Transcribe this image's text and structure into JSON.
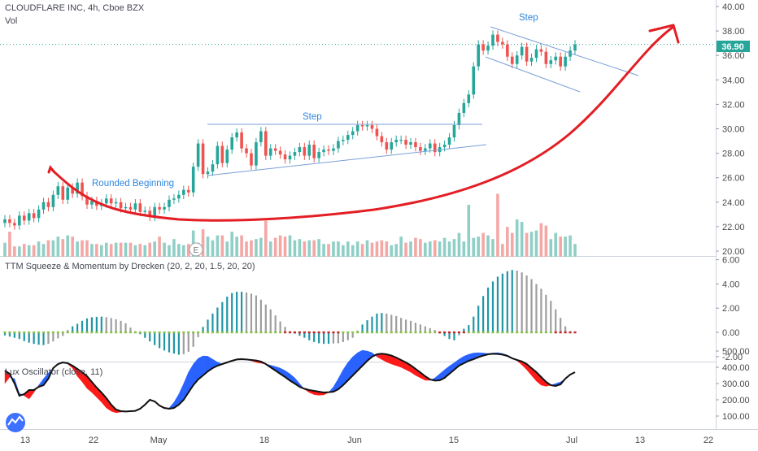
{
  "header": {
    "symbol": "CLOUDFLARE INC, 4h, Cboe BZX",
    "vol_label": "Vol",
    "last_price": "36.90"
  },
  "panes": {
    "squeeze_title": "TTM Squeeze & Momentum by Drecken (20, 2, 20, 1.5, 20, 20)",
    "lux_title": "Lux Oscillator (close, 11)"
  },
  "annotations": {
    "rounded": "Rounded Beginning",
    "step1": "Step",
    "step2": "Step",
    "earnings_marker": "E"
  },
  "colors": {
    "up": "#26a69a",
    "down": "#ef5350",
    "vol_up": "#8fcfc6",
    "vol_down": "#f4a7a5",
    "curve": "#e31e24",
    "trend": "#7b9fd6",
    "mom_up": "#2196a6",
    "mom_fade": "#9e9e9e",
    "sq_on": "#8bc34a",
    "sq_off": "#c62828",
    "lux_bull": "#2962ff",
    "lux_bear": "#ff1a1a",
    "price_label": "#26a69a"
  },
  "chart_data": [
    {
      "type": "candlestick",
      "title": "CLOUDFLARE INC, 4h, Cboe BZX",
      "x_ticks": [
        "13",
        "22",
        "May",
        "18",
        "Jun",
        "15",
        "Jul",
        "13",
        "22"
      ],
      "price_axis": {
        "ylim": [
          19.5,
          40.5
        ],
        "ticks": [
          "20.00",
          "22.00",
          "24.00",
          "26.00",
          "28.00",
          "30.00",
          "32.00",
          "34.00",
          "36.00",
          "38.00",
          "40.00"
        ],
        "last": 36.9
      },
      "closes": [
        22.6,
        22.3,
        22.1,
        22.9,
        22.5,
        23.1,
        22.7,
        23.4,
        24.0,
        23.6,
        24.6,
        25.3,
        24.2,
        25.2,
        24.7,
        25.6,
        24.5,
        23.8,
        24.1,
        23.7,
        23.9,
        24.3,
        23.9,
        24.0,
        23.5,
        23.6,
        23.4,
        23.9,
        23.2,
        23.3,
        22.8,
        23.6,
        23.4,
        23.6,
        24.2,
        24.3,
        24.6,
        25.0,
        24.8,
        26.9,
        28.8,
        26.3,
        26.5,
        27.1,
        28.6,
        27.2,
        28.3,
        29.3,
        29.7,
        28.4,
        28.0,
        27.0,
        28.9,
        29.8,
        27.8,
        28.4,
        28.2,
        27.9,
        27.5,
        27.8,
        28.1,
        28.5,
        27.8,
        28.7,
        27.6,
        28.1,
        28.3,
        28.2,
        28.4,
        29.0,
        29.1,
        29.5,
        29.8,
        30.3,
        30.2,
        30.3,
        30.0,
        29.4,
        28.9,
        28.3,
        28.9,
        29.1,
        29.1,
        28.7,
        28.9,
        28.5,
        28.2,
        28.4,
        28.8,
        28.1,
        28.5,
        28.7,
        29.3,
        30.3,
        31.3,
        32.1,
        32.8,
        35.1,
        36.9,
        36.4,
        36.8,
        37.7,
        37.1,
        36.9,
        35.9,
        35.3,
        36.0,
        36.7,
        35.5,
        35.8,
        36.5,
        36.3,
        35.3,
        35.6,
        35.9,
        35.1,
        35.9,
        36.4,
        36.9
      ],
      "volume": [
        20.7,
        21.6,
        20.4,
        20.4,
        20.6,
        20.5,
        20.5,
        20.8,
        20.6,
        20.9,
        20.9,
        21.2,
        21.0,
        21.3,
        21.2,
        20.8,
        20.9,
        20.9,
        20.6,
        20.6,
        20.5,
        20.7,
        20.6,
        20.7,
        20.7,
        20.7,
        20.7,
        20.5,
        20.6,
        20.5,
        20.7,
        20.8,
        21.2,
        20.7,
        20.5,
        21.0,
        20.6,
        20.5,
        20.6,
        21.7,
        20.7,
        21.8,
        21.2,
        20.9,
        21.3,
        21.3,
        20.8,
        21.6,
        21.2,
        21.3,
        20.8,
        20.9,
        21.0,
        21.1,
        22.5,
        20.8,
        21.1,
        21.3,
        21.2,
        21.3,
        20.9,
        21.0,
        20.8,
        20.9,
        20.9,
        21.0,
        20.6,
        20.6,
        20.8,
        20.8,
        20.5,
        20.8,
        20.5,
        20.8,
        20.6,
        20.9,
        20.7,
        20.8,
        20.9,
        20.8,
        20.5,
        20.6,
        21.2,
        20.7,
        20.8,
        21.1,
        21.0,
        20.7,
        20.8,
        20.9,
        20.8,
        21.1,
        20.8,
        21.0,
        21.5,
        20.8,
        23.8,
        21.1,
        21.2,
        21.5,
        21.3,
        21.0,
        24.7,
        20.6,
        22.0,
        21.5,
        22.6,
        22.4,
        21.5,
        21.6,
        21.7,
        22.3,
        22.1,
        21.0,
        21.5,
        21.2,
        21.2,
        21.3,
        20.6
      ],
      "annotations": [
        "Rounded Beginning",
        "Step",
        "Step"
      ]
    },
    {
      "type": "bar",
      "title": "TTM Squeeze & Momentum by Drecken (20, 2, 20, 1.5, 20, 20)",
      "ylim": [
        -2.3,
        6.1
      ],
      "ticks": [
        "-2.00",
        "0.00",
        "2.00",
        "4.00",
        "6.00"
      ],
      "values": [
        -0.25,
        -0.35,
        -0.45,
        -0.55,
        -0.72,
        -0.85,
        -0.95,
        -1.02,
        -1.05,
        -0.95,
        -0.75,
        -0.5,
        -0.3,
        0.2,
        0.5,
        0.7,
        0.95,
        1.15,
        1.25,
        1.28,
        1.3,
        1.25,
        1.18,
        1.08,
        0.95,
        0.75,
        0.4,
        0.1,
        -0.15,
        -0.45,
        -0.75,
        -1.05,
        -1.3,
        -1.5,
        -1.65,
        -1.75,
        -1.85,
        -1.8,
        -1.6,
        -1.2,
        -0.4,
        0.45,
        1.05,
        1.55,
        2.05,
        2.5,
        2.95,
        3.25,
        3.35,
        3.35,
        3.3,
        3.2,
        3.05,
        2.7,
        2.3,
        1.9,
        1.4,
        0.9,
        0.45,
        0.1,
        -0.1,
        -0.28,
        -0.45,
        -0.65,
        -0.8,
        -0.9,
        -0.95,
        -0.95,
        -0.92,
        -0.9,
        -0.8,
        -0.65,
        -0.45,
        0.15,
        0.65,
        1.0,
        1.3,
        1.55,
        1.6,
        1.55,
        1.45,
        1.35,
        1.2,
        1.05,
        0.95,
        0.8,
        0.65,
        0.5,
        0.35,
        0.2,
        -0.1,
        -0.3,
        -0.55,
        -0.65,
        -0.25,
        0.3,
        0.6,
        1.3,
        2.2,
        3.0,
        3.7,
        4.2,
        4.6,
        4.85,
        5.05,
        5.15,
        5.1,
        4.95,
        4.7,
        4.4,
        4.0,
        3.6,
        3.1,
        2.6,
        1.9,
        1.2,
        0.5,
        0.1,
        -0.05
      ],
      "squeeze_on": [
        true,
        true,
        true,
        true,
        true,
        true,
        true,
        true,
        true,
        true,
        true,
        true,
        true,
        true,
        true,
        true,
        true,
        true,
        true,
        true,
        true,
        true,
        true,
        true,
        true,
        true,
        true,
        true,
        true,
        true,
        true,
        true,
        true,
        true,
        true,
        true,
        true,
        true,
        true,
        true,
        true,
        true,
        true,
        true,
        true,
        true,
        true,
        true,
        true,
        true,
        true,
        true,
        true,
        true,
        true,
        true,
        true,
        true,
        false,
        false,
        false,
        false,
        false,
        false,
        false,
        false,
        false,
        false,
        false,
        false,
        true,
        true,
        true,
        true,
        true,
        true,
        true,
        true,
        true,
        true,
        true,
        true,
        true,
        true,
        true,
        true,
        true,
        true,
        true,
        true,
        false,
        false,
        false,
        false,
        false,
        false,
        true,
        true,
        true,
        true,
        true,
        true,
        true,
        true,
        true,
        true,
        true,
        true,
        true,
        true,
        true,
        true,
        true,
        true,
        false,
        false,
        false,
        false,
        false
      ]
    },
    {
      "type": "area",
      "title": "Lux Oscillator (close, 11)",
      "ylim": [
        80,
        520
      ],
      "ticks": [
        "100.00",
        "200.00",
        "300.00",
        "400.00",
        "500.00"
      ],
      "fast": [
        300,
        340,
        330,
        240,
        225,
        205,
        245,
        290,
        330,
        365,
        395,
        420,
        435,
        420,
        395,
        345,
        310,
        270,
        245,
        215,
        185,
        150,
        130,
        120,
        125,
        128,
        130,
        135,
        150,
        175,
        205,
        190,
        160,
        145,
        150,
        185,
        235,
        300,
        370,
        420,
        455,
        470,
        468,
        450,
        432,
        420,
        425,
        440,
        452,
        455,
        450,
        440,
        430,
        425,
        420,
        413,
        405,
        395,
        380,
        360,
        335,
        300,
        265,
        245,
        232,
        228,
        230,
        245,
        280,
        330,
        385,
        430,
        465,
        490,
        505,
        500,
        490,
        465,
        448,
        432,
        420,
        410,
        400,
        385,
        370,
        350,
        335,
        320,
        320,
        335,
        360,
        385,
        408,
        428,
        450,
        468,
        480,
        488,
        490,
        488,
        485,
        488,
        490,
        485,
        475,
        460,
        440,
        415,
        385,
        350,
        315,
        290,
        283,
        290,
        300,
        310,
        330,
        355,
        370
      ],
      "slow": [
        380,
        360,
        300,
        225,
        235,
        260,
        260,
        280,
        290,
        330,
        395,
        420,
        430,
        425,
        410,
        390,
        370,
        345,
        310,
        275,
        245,
        210,
        170,
        140,
        130,
        128,
        130,
        132,
        145,
        170,
        200,
        190,
        165,
        150,
        145,
        150,
        170,
        200,
        245,
        290,
        325,
        350,
        375,
        395,
        410,
        420,
        430,
        440,
        448,
        450,
        448,
        445,
        442,
        435,
        420,
        400,
        380,
        360,
        340,
        318,
        300,
        280,
        268,
        260,
        255,
        250,
        245,
        247,
        250,
        265,
        290,
        320,
        350,
        380,
        410,
        440,
        465,
        480,
        484,
        480,
        472,
        460,
        445,
        430,
        412,
        390,
        368,
        345,
        325,
        318,
        320,
        335,
        360,
        385,
        410,
        425,
        440,
        450,
        462,
        472,
        480,
        483,
        482,
        478,
        470,
        455,
        445,
        436,
        420,
        395,
        370,
        340,
        310,
        290,
        285,
        295,
        330,
        355,
        370
      ]
    }
  ]
}
